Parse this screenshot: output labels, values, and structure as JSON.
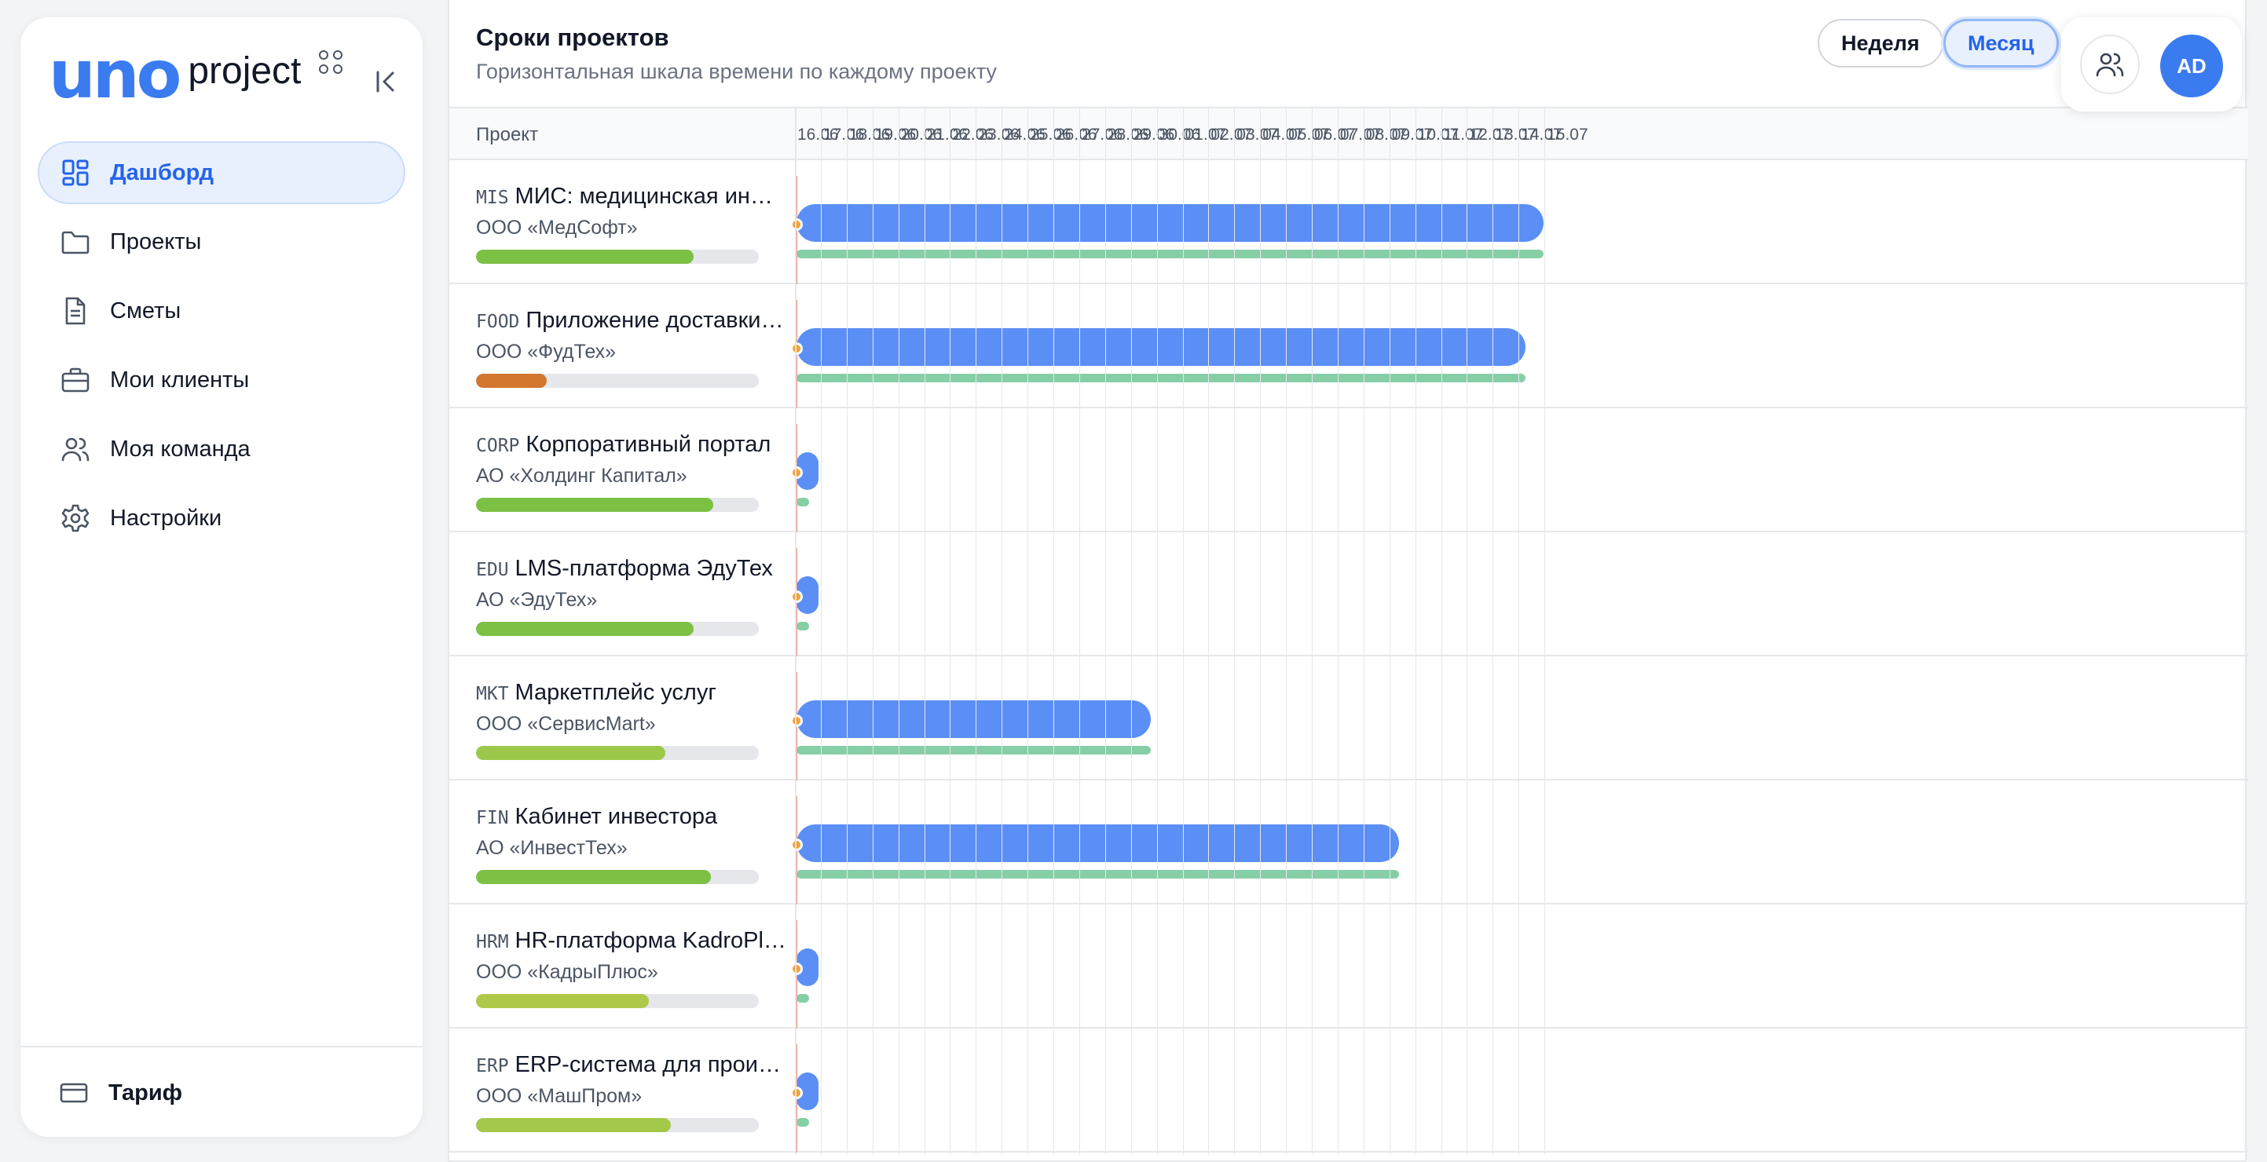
{
  "logo": {
    "brand": "uno",
    "product": "project"
  },
  "nav": {
    "items": [
      {
        "id": "dashboard",
        "label": "Дашборд",
        "icon": "dashboard-icon",
        "active": true
      },
      {
        "id": "projects",
        "label": "Проекты",
        "icon": "folder-icon",
        "active": false
      },
      {
        "id": "estimates",
        "label": "Сметы",
        "icon": "document-icon",
        "active": false
      },
      {
        "id": "clients",
        "label": "Мои клиенты",
        "icon": "briefcase-icon",
        "active": false
      },
      {
        "id": "team",
        "label": "Моя команда",
        "icon": "users-icon",
        "active": false
      },
      {
        "id": "settings",
        "label": "Настройки",
        "icon": "gear-icon",
        "active": false
      }
    ],
    "tariff": {
      "label": "Тариф",
      "icon": "credit-card-icon"
    }
  },
  "header": {
    "title": "Сроки проектов",
    "subtitle": "Горизонтальная шкала времени по каждому проекту",
    "view_week": "Неделя",
    "view_month": "Месяц",
    "active_view": "month"
  },
  "user": {
    "initials": "AD"
  },
  "gantt": {
    "column_label": "Проект",
    "dates": [
      "16.06",
      "17.06",
      "18.06",
      "19.06",
      "20.06",
      "21.06",
      "22.06",
      "23.06",
      "24.06",
      "25.06",
      "26.06",
      "27.06",
      "28.06",
      "29.06",
      "30.06",
      "01.07",
      "02.07",
      "03.07",
      "04.07",
      "05.07",
      "06.07",
      "07.07",
      "08.07",
      "09.07",
      "10.07",
      "11.07",
      "12.07",
      "13.07",
      "14.07",
      "15.07"
    ],
    "today": "16.06",
    "projects": [
      {
        "code": "MIS",
        "name": "МИС: медицинская информационная система",
        "client": "ООО «МедСофт»",
        "progress": 0.77,
        "progress_color": "#7cc044",
        "end_day": 28.9
      },
      {
        "code": "FOOD",
        "name": "Приложение доставки еды",
        "client": "ООО «ФудТех»",
        "progress": 0.25,
        "progress_color": "#d3772f",
        "end_day": 28.2
      },
      {
        "code": "CORP",
        "name": "Корпоративный портал",
        "client": "АО «Холдинг Капитал»",
        "progress": 0.84,
        "progress_color": "#7cc044",
        "end_day": 0.4
      },
      {
        "code": "EDU",
        "name": "LMS-платформа ЭдуТех",
        "client": "АО «ЭдуТех»",
        "progress": 0.77,
        "progress_color": "#7cc044",
        "end_day": 0.4
      },
      {
        "code": "MKT",
        "name": "Маркетплейс услуг",
        "client": "ООО «СервисMart»",
        "progress": 0.67,
        "progress_color": "#9cc84a",
        "end_day": 13.7
      },
      {
        "code": "FIN",
        "name": "Кабинет инвестора",
        "client": "АО «ИнвестТех»",
        "progress": 0.83,
        "progress_color": "#7cc044",
        "end_day": 23.3
      },
      {
        "code": "HRM",
        "name": "HR-платформа KadroPlus",
        "client": "ООО «КадрыПлюс»",
        "progress": 0.61,
        "progress_color": "#aec94a",
        "end_day": 0.4
      },
      {
        "code": "ERP",
        "name": "ERP-система для производства",
        "client": "ООО «МашПром»",
        "progress": 0.69,
        "progress_color": "#a3c84a",
        "end_day": 0.4
      }
    ]
  },
  "colors": {
    "accent": "#3b7bf0",
    "bar": "#5b8ff5",
    "sub_bar": "#86cfa6",
    "today_line": "#f08a76",
    "today_dot": "#f2a13a"
  }
}
